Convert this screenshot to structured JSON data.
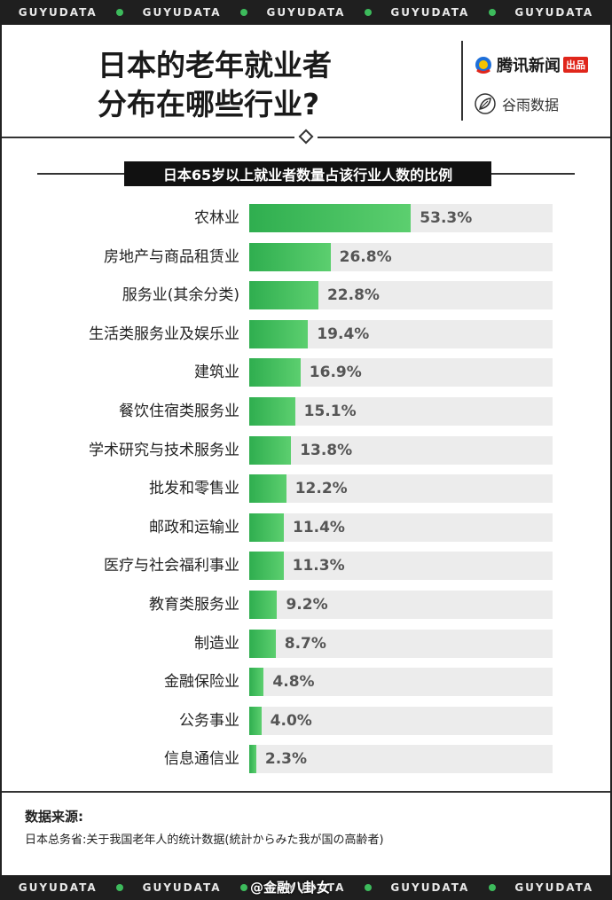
{
  "strip": {
    "word": "GUYUDATA",
    "watermark": "@金融八卦女"
  },
  "header": {
    "title_line1": "日本的老年就业者",
    "title_line2": "分布在哪些行业?",
    "logo1_text": "腾讯新闻",
    "logo1_badge": "出品",
    "logo2_text": "谷雨数据"
  },
  "subtitle": "日本65岁以上就业者数量占该行业人数的比例",
  "source": {
    "label": "数据来源:",
    "text": "日本总务省:关于我国老年人的统计数据(統計からみた我が国の高齢者)"
  },
  "colors": {
    "bar": "#3dbb5c",
    "track": "#ececec",
    "dot": "#3dbb5c"
  },
  "chart_data": {
    "type": "bar",
    "orientation": "horizontal",
    "title": "日本65岁以上就业者数量占该行业人数的比例",
    "xlim": [
      0,
      100
    ],
    "grid": false,
    "categories": [
      "农林业",
      "房地产与商品租赁业",
      "服务业(其余分类)",
      "生活类服务业及娱乐业",
      "建筑业",
      "餐饮住宿类服务业",
      "学术研究与技术服务业",
      "批发和零售业",
      "邮政和运输业",
      "医疗与社会福利事业",
      "教育类服务业",
      "制造业",
      "金融保险业",
      "公务事业",
      "信息通信业"
    ],
    "values": [
      53.3,
      26.8,
      22.8,
      19.4,
      16.9,
      15.1,
      13.8,
      12.2,
      11.4,
      11.3,
      9.2,
      8.7,
      4.8,
      4.0,
      2.3
    ],
    "labels": [
      "53.3%",
      "26.8%",
      "22.8%",
      "19.4%",
      "16.9%",
      "15.1%",
      "13.8%",
      "12.2%",
      "11.4%",
      "11.3%",
      "9.2%",
      "8.7%",
      "4.8%",
      "4.0%",
      "2.3%"
    ]
  }
}
